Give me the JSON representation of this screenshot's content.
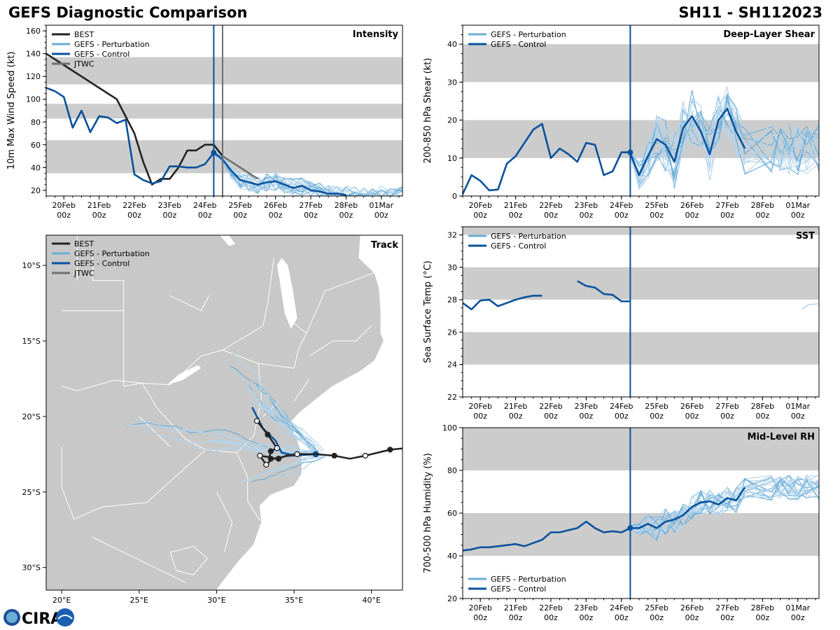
{
  "header": {
    "title_left": "GEFS Diagnostic Comparison",
    "title_right": "SH11 - SH112023"
  },
  "logo": {
    "text": "CIRA"
  },
  "colors": {
    "best": "#222222",
    "perturbation": "#6aaed6",
    "perturbation_thin": "#b4d4ec",
    "control": "#08519c",
    "jtwc": "#707070",
    "band": "#cccccc",
    "land": "#c8c8c8",
    "water": "#ffffff"
  },
  "time_axis": {
    "ticks": [
      0.5,
      1.5,
      2.5,
      3.5,
      4.5,
      5.5,
      6.5,
      7.5,
      8.5,
      9.5
    ],
    "labels": [
      "20Feb\n00z",
      "21Feb\n00z",
      "22Feb\n00z",
      "23Feb\n00z",
      "24Feb\n00z",
      "25Feb\n00z",
      "26Feb\n00z",
      "27Feb\n00z",
      "28Feb\n00z",
      "01Mar\n00z"
    ],
    "range": [
      0,
      10.1
    ],
    "init_day": 4.75,
    "jtwc_day": 5.0
  },
  "chart_data": [
    {
      "id": "intensity",
      "type": "line",
      "title": "Intensity",
      "ylabel": "10m Max Wind Speed (kt)",
      "ylim": [
        15,
        165
      ],
      "yticks": [
        20,
        40,
        60,
        80,
        100,
        120,
        140,
        160
      ],
      "bands": [
        [
          35,
          64
        ],
        [
          83,
          96
        ],
        [
          113,
          137
        ]
      ],
      "legend": [
        "BEST",
        "GEFS - Perturbation",
        "GEFS - Control",
        "JTWC"
      ],
      "series": [
        {
          "name": "BEST",
          "x": [
            0,
            0.25,
            0.5,
            0.75,
            1,
            1.25,
            1.5,
            1.75,
            2,
            2.25,
            2.5,
            2.75,
            3,
            3.25,
            3.5,
            3.75,
            4,
            4.25,
            4.5,
            4.75,
            5.0
          ],
          "y": [
            140,
            135,
            130,
            125,
            120,
            115,
            110,
            105,
            100,
            85,
            70,
            45,
            25,
            30,
            30,
            40,
            55,
            55,
            60,
            60,
            50
          ]
        },
        {
          "name": "GEFS - Control",
          "x": [
            0,
            0.25,
            0.5,
            0.75,
            1,
            1.25,
            1.5,
            1.75,
            2,
            2.25,
            2.5,
            2.75,
            3,
            3.25,
            3.5,
            3.75,
            4,
            4.25,
            4.5,
            4.75
          ],
          "y": [
            110,
            107,
            102,
            75,
            90,
            71,
            85,
            84,
            79,
            82,
            34,
            29,
            26,
            28,
            41,
            41,
            40,
            40,
            43,
            53
          ]
        },
        {
          "name": "GEFS - Control forecast",
          "x": [
            4.75,
            5.0,
            5.25,
            5.5,
            5.75,
            6.0,
            6.25,
            6.5,
            6.75,
            7.0,
            7.25,
            7.5,
            7.75,
            8.0,
            8.25,
            8.5
          ],
          "y": [
            53,
            47,
            37,
            29,
            27,
            25,
            27,
            28,
            25,
            22,
            24,
            20,
            19,
            17,
            17,
            16
          ]
        },
        {
          "name": "JTWC",
          "x": [
            5.0,
            5.25,
            5.5,
            5.75,
            6.0
          ],
          "y": [
            50,
            45,
            40,
            35,
            30
          ]
        }
      ],
      "perturbation_spread": {
        "start": [
          4.75,
          60
        ],
        "end_range": [
          14,
          30
        ]
      }
    },
    {
      "id": "shear",
      "type": "line",
      "title": "Deep-Layer Shear",
      "ylabel": "200-850 hPa Shear (kt)",
      "ylim": [
        0,
        45
      ],
      "yticks": [
        0,
        10,
        20,
        30,
        40
      ],
      "bands": [
        [
          10,
          20
        ],
        [
          30,
          40
        ]
      ],
      "legend": [
        "GEFS - Perturbation",
        "GEFS - Control"
      ],
      "series": [
        {
          "name": "GEFS - Control",
          "x": [
            0,
            0.25,
            0.5,
            0.75,
            1,
            1.25,
            1.5,
            1.75,
            2,
            2.25,
            2.5,
            2.75,
            3,
            3.25,
            3.5,
            3.75,
            4,
            4.25,
            4.5,
            4.75
          ],
          "y": [
            0.5,
            5.5,
            4,
            1.5,
            1.7,
            8.5,
            10.5,
            14,
            17.5,
            19,
            10,
            12.5,
            11,
            9,
            14,
            13.5,
            5.5,
            6.5,
            11.5,
            11.5
          ]
        },
        {
          "name": "GEFS - Control forecast",
          "x": [
            4.75,
            5.0,
            5.25,
            5.5,
            5.75,
            6.0,
            6.25,
            6.5,
            6.75,
            7.0,
            7.25,
            7.5,
            7.75,
            8.0
          ],
          "y": [
            11.2,
            5.5,
            10.5,
            15,
            13.5,
            9,
            18,
            21,
            17,
            11,
            20,
            23,
            17,
            12.5
          ]
        }
      ]
    },
    {
      "id": "track",
      "type": "map",
      "title": "Track",
      "lon_range": [
        19,
        42
      ],
      "lat_range": [
        -31.5,
        -8
      ],
      "lon_ticks": [
        20,
        25,
        30,
        35,
        40
      ],
      "lon_labels": [
        "20°E",
        "25°E",
        "30°E",
        "35°E",
        "40°E"
      ],
      "lat_ticks": [
        -10,
        -15,
        -20,
        -25,
        -30
      ],
      "lat_labels": [
        "10°S",
        "15°S",
        "20°S",
        "25°S",
        "30°S"
      ],
      "legend": [
        "BEST",
        "GEFS - Perturbation",
        "GEFS - Control",
        "JTWC"
      ],
      "best_track": [
        [
          42.2,
          -22.1
        ],
        [
          41.2,
          -22.2
        ],
        [
          39.6,
          -22.6
        ],
        [
          38.6,
          -22.8
        ],
        [
          37.6,
          -22.6
        ],
        [
          36.4,
          -22.5
        ],
        [
          35.2,
          -22.5
        ],
        [
          34.5,
          -22.6
        ],
        [
          34.0,
          -22.8
        ],
        [
          33.6,
          -22.8
        ],
        [
          33.2,
          -23.2
        ],
        [
          32.8,
          -22.6
        ],
        [
          33.4,
          -22.7
        ],
        [
          33.5,
          -22.3
        ],
        [
          33.9,
          -22.1
        ],
        [
          33.3,
          -21.2
        ],
        [
          32.6,
          -20.3
        ]
      ],
      "best_points": [
        [
          41.2,
          -22.2,
          "f"
        ],
        [
          39.6,
          -22.6,
          "o"
        ],
        [
          37.6,
          -22.6,
          "f"
        ],
        [
          35.2,
          -22.5,
          "o"
        ],
        [
          34.0,
          -22.8,
          "f"
        ],
        [
          33.2,
          -23.2,
          "o"
        ],
        [
          32.8,
          -22.6,
          "o"
        ],
        [
          33.5,
          -22.8,
          "f"
        ],
        [
          33.5,
          -22.3,
          "f"
        ],
        [
          33.9,
          -22.1,
          "o"
        ],
        [
          33.3,
          -21.2,
          "f"
        ],
        [
          32.6,
          -20.3,
          "o"
        ]
      ],
      "control_track": [
        [
          36.4,
          -22.5
        ],
        [
          35.0,
          -22.6
        ],
        [
          34.2,
          -22.4
        ],
        [
          33.8,
          -21.6
        ],
        [
          33.0,
          -20.8
        ],
        [
          32.3,
          -19.4
        ]
      ],
      "control_point": [
        36.4,
        -22.5
      ],
      "jtwc_track": [
        [
          36.0,
          -22.5
        ],
        [
          35.0,
          -22.6
        ],
        [
          34.0,
          -22.7
        ],
        [
          33.5,
          -22.8
        ]
      ]
    },
    {
      "id": "sst",
      "type": "line",
      "title": "SST",
      "ylabel": "Sea Surface Temp (°C)",
      "ylim": [
        22,
        32.5
      ],
      "yticks": [
        22,
        24,
        26,
        28,
        30,
        32
      ],
      "bands": [
        [
          24,
          26
        ],
        [
          28,
          30
        ],
        [
          32,
          33
        ]
      ],
      "legend": [
        "GEFS - Perturbation",
        "GEFS - Control"
      ],
      "series": [
        {
          "name": "GEFS - Control seg1",
          "x": [
            0,
            0.25,
            0.5,
            0.75,
            1,
            1.25,
            1.5,
            1.75,
            2,
            2.25
          ],
          "y": [
            27.8,
            27.4,
            27.95,
            28.0,
            27.6,
            27.8,
            28.0,
            28.15,
            28.25,
            28.25
          ]
        },
        {
          "name": "GEFS - Control seg2",
          "x": [
            3.25,
            3.5,
            3.75,
            4,
            4.25,
            4.5,
            4.75
          ],
          "y": [
            29.15,
            28.85,
            28.75,
            28.35,
            28.3,
            27.9,
            27.9
          ]
        },
        {
          "name": "GEFS - Perturbation",
          "x": [
            9.6,
            9.8,
            10.1
          ],
          "y": [
            27.4,
            27.7,
            27.75
          ]
        }
      ]
    },
    {
      "id": "rh",
      "type": "line",
      "title": "Mid-Level RH",
      "ylabel": "700-500 hPa Humidity (%)",
      "ylim": [
        20,
        100
      ],
      "yticks": [
        20,
        40,
        60,
        80,
        100
      ],
      "bands": [
        [
          40,
          60
        ],
        [
          80,
          100
        ]
      ],
      "legend": [
        "GEFS - Perturbation",
        "GEFS - Control"
      ],
      "series": [
        {
          "name": "GEFS - Control",
          "x": [
            0,
            0.25,
            0.5,
            0.75,
            1,
            1.25,
            1.5,
            1.75,
            2,
            2.25,
            2.5,
            2.75,
            3,
            3.25,
            3.5,
            3.75,
            4,
            4.25,
            4.5,
            4.75
          ],
          "y": [
            42.5,
            43,
            44,
            44,
            44.5,
            45,
            45.5,
            44.5,
            46,
            47.5,
            51,
            51,
            52,
            53,
            56,
            53,
            51,
            51.5,
            51,
            53
          ]
        },
        {
          "name": "GEFS - Control forecast",
          "x": [
            4.75,
            5.0,
            5.25,
            5.5,
            5.75,
            6.0,
            6.25,
            6.5,
            6.75,
            7.0,
            7.25,
            7.5,
            7.75,
            8.0
          ],
          "y": [
            53,
            53,
            55,
            53,
            56,
            57,
            59,
            63,
            65,
            65.5,
            64,
            67,
            66,
            72
          ]
        }
      ]
    }
  ]
}
